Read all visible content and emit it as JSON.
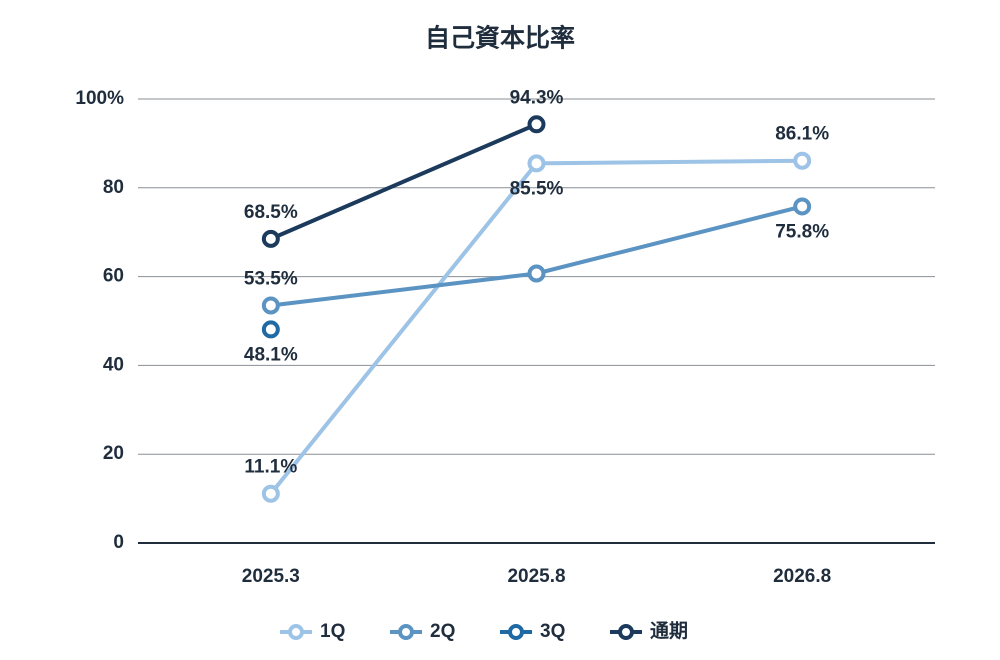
{
  "chart_data": {
    "type": "line",
    "title": "自己資本比率",
    "categories": [
      "2025.3",
      "2025.8",
      "2026.8"
    ],
    "series": [
      {
        "name": "1Q",
        "color": "#9dc3e6",
        "values": [
          11.1,
          85.5,
          86.1
        ],
        "value_labels": [
          "11.1%",
          "85.5%",
          "86.1%"
        ]
      },
      {
        "name": "2Q",
        "color": "#5b93c2",
        "values": [
          53.5,
          60.7,
          75.8
        ],
        "value_labels": [
          "53.5%",
          null,
          "75.8%"
        ]
      },
      {
        "name": "3Q",
        "color": "#1f6aa5",
        "values": [
          48.1,
          null,
          null
        ],
        "value_labels": [
          "48.1%",
          null,
          null
        ]
      },
      {
        "name": "通期",
        "color": "#1b3a5c",
        "values": [
          68.5,
          94.3,
          null
        ],
        "value_labels": [
          "68.5%",
          "94.3%",
          null
        ]
      }
    ],
    "ylim": [
      0,
      100
    ],
    "yticks": [
      0,
      20,
      40,
      60,
      80,
      {
        "value": 100,
        "label": "100%"
      }
    ],
    "grid": true,
    "legend": "bottom"
  }
}
